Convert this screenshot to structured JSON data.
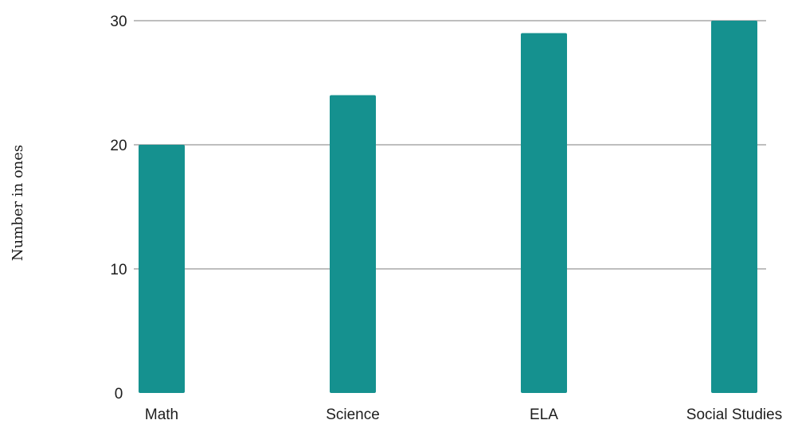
{
  "chart_data": {
    "type": "bar",
    "categories": [
      "Math",
      "Science",
      "ELA",
      "Social Studies"
    ],
    "values": [
      20,
      24,
      29,
      30
    ],
    "title": "",
    "xlabel": "",
    "ylabel": "Number in ones",
    "ylim": [
      0,
      30
    ],
    "yticks": [
      0,
      10,
      20,
      30
    ],
    "grid": true,
    "colors": {
      "bar": "#15918f",
      "grid": "#7d7d7d",
      "text": "#1d1d1d"
    }
  }
}
